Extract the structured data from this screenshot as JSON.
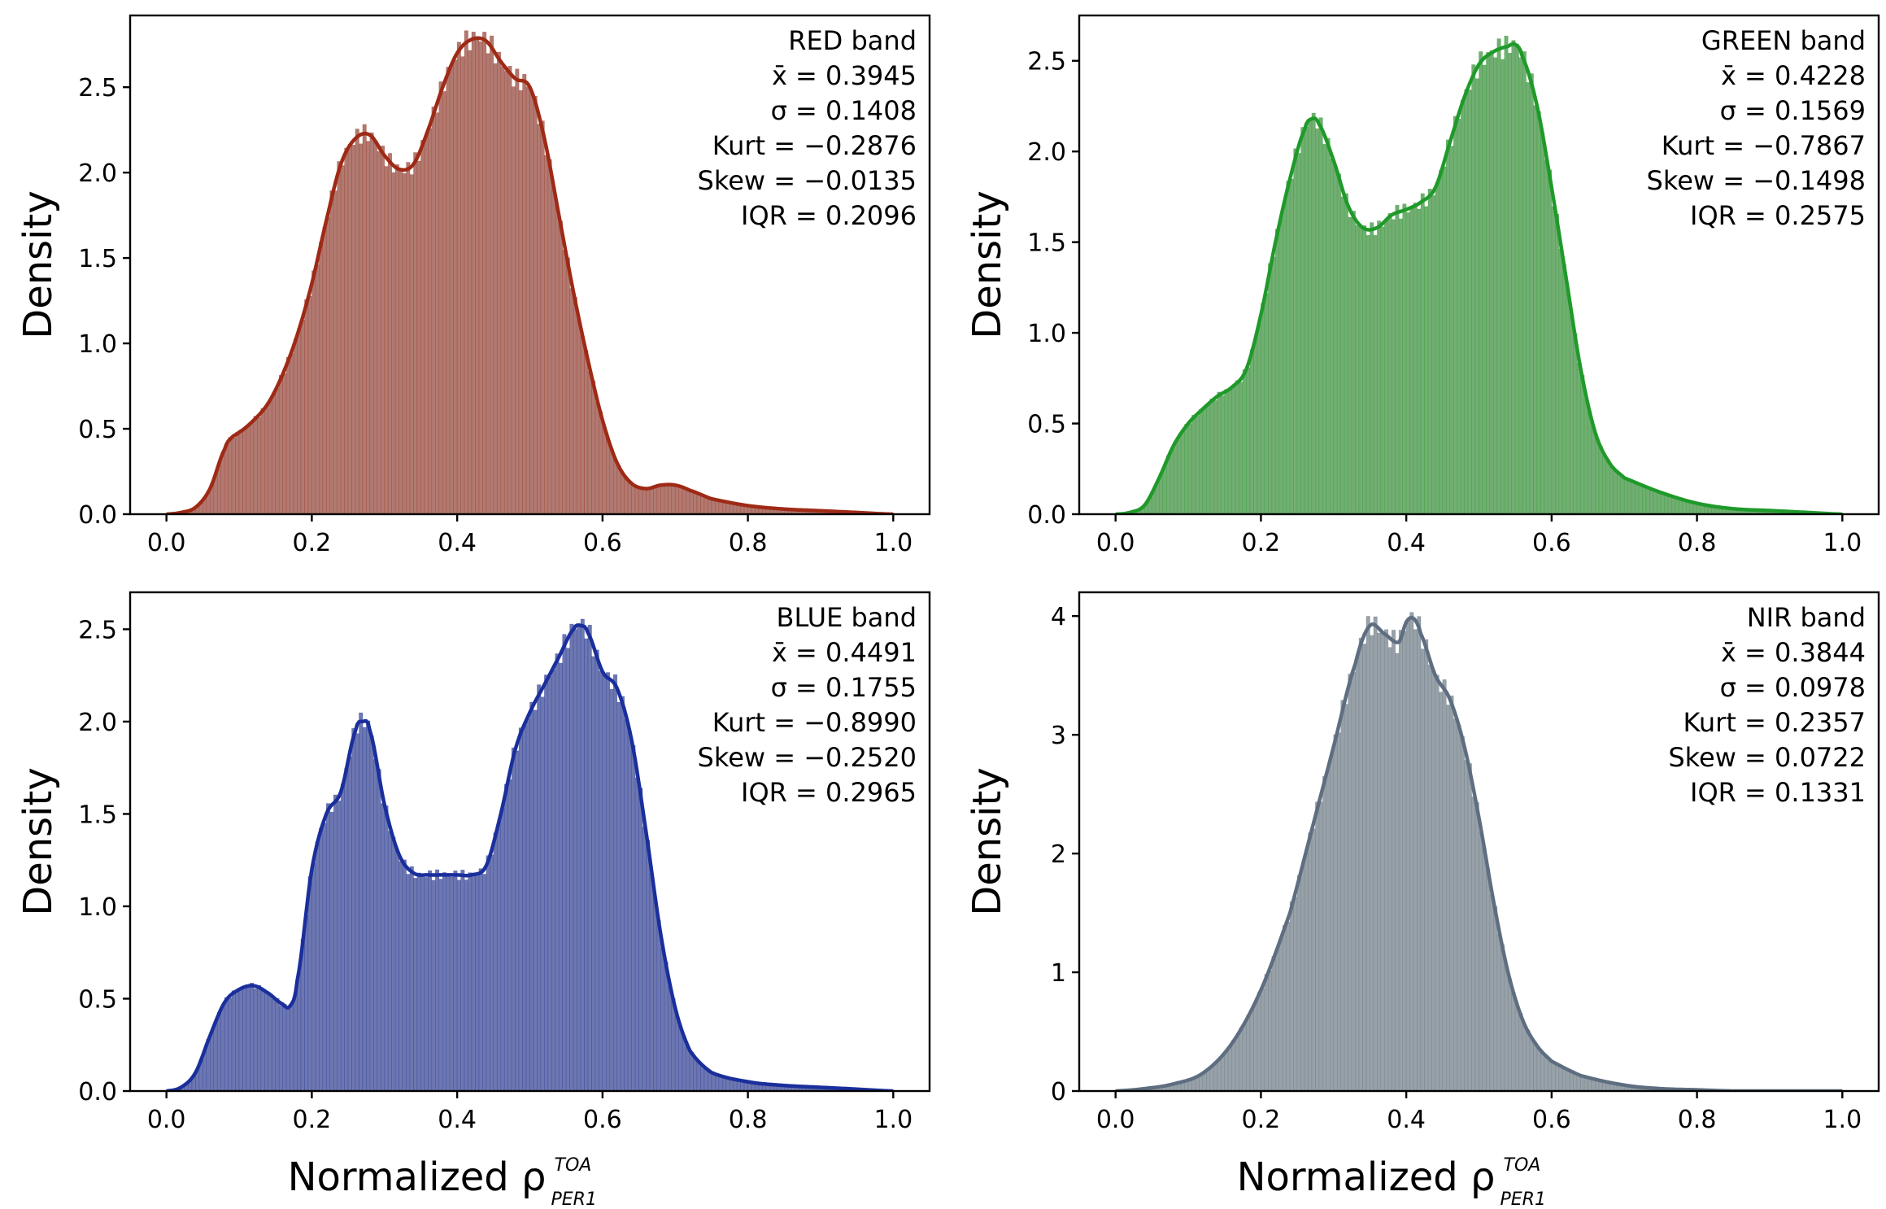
{
  "chart_data": [
    {
      "type": "area",
      "band_label": "RED band",
      "colors": {
        "fill": "#b07a72",
        "line": "#9e2a16"
      },
      "stats": [
        "RED band",
        "x̄ = 0.3945",
        "σ = 0.1408",
        "Kurt = −0.2876",
        "Skew = −0.0135",
        "IQR = 0.2096"
      ],
      "ylabel": "Density",
      "xlabel": "",
      "xlim": [
        -0.05,
        1.05
      ],
      "ylim": [
        0,
        2.92
      ],
      "xticks": [
        0.0,
        0.2,
        0.4,
        0.6,
        0.8,
        1.0
      ],
      "xtick_labels": [
        "0.0",
        "0.2",
        "0.4",
        "0.6",
        "0.8",
        "1.0"
      ],
      "yticks": [
        0.0,
        0.5,
        1.0,
        1.5,
        2.0,
        2.5
      ],
      "ytick_labels": [
        "0.0",
        "0.5",
        "1.0",
        "1.5",
        "2.0",
        "2.5"
      ],
      "curve": {
        "x": [
          0.0,
          0.02,
          0.04,
          0.06,
          0.08,
          0.09,
          0.1,
          0.12,
          0.14,
          0.16,
          0.18,
          0.2,
          0.22,
          0.24,
          0.26,
          0.28,
          0.3,
          0.32,
          0.34,
          0.36,
          0.38,
          0.4,
          0.42,
          0.44,
          0.46,
          0.48,
          0.5,
          0.52,
          0.54,
          0.56,
          0.58,
          0.6,
          0.62,
          0.64,
          0.66,
          0.68,
          0.7,
          0.72,
          0.75,
          0.8,
          0.85,
          0.9,
          0.95,
          1.0
        ],
        "y": [
          0.0,
          0.01,
          0.04,
          0.15,
          0.38,
          0.45,
          0.48,
          0.55,
          0.65,
          0.82,
          1.05,
          1.35,
          1.72,
          2.05,
          2.2,
          2.22,
          2.1,
          2.02,
          2.05,
          2.25,
          2.5,
          2.7,
          2.78,
          2.77,
          2.65,
          2.55,
          2.5,
          2.2,
          1.75,
          1.3,
          0.9,
          0.55,
          0.3,
          0.18,
          0.15,
          0.17,
          0.17,
          0.14,
          0.09,
          0.05,
          0.03,
          0.02,
          0.01,
          0.0
        ]
      }
    },
    {
      "type": "area",
      "band_label": "GREEN band",
      "colors": {
        "fill": "#72ae72",
        "line": "#1f9a2a"
      },
      "stats": [
        "GREEN band",
        "x̄ = 0.4228",
        "σ = 0.1569",
        "Kurt = −0.7867",
        "Skew = −0.1498",
        "IQR = 0.2575"
      ],
      "ylabel": "Density",
      "xlabel": "",
      "xlim": [
        -0.05,
        1.05
      ],
      "ylim": [
        0,
        2.75
      ],
      "xticks": [
        0.0,
        0.2,
        0.4,
        0.6,
        0.8,
        1.0
      ],
      "xtick_labels": [
        "0.0",
        "0.2",
        "0.4",
        "0.6",
        "0.8",
        "1.0"
      ],
      "yticks": [
        0.0,
        0.5,
        1.0,
        1.5,
        2.0,
        2.5
      ],
      "ytick_labels": [
        "0.0",
        "0.5",
        "1.0",
        "1.5",
        "2.0",
        "2.5"
      ],
      "curve": {
        "x": [
          0.0,
          0.02,
          0.04,
          0.06,
          0.08,
          0.1,
          0.12,
          0.14,
          0.16,
          0.18,
          0.2,
          0.22,
          0.24,
          0.26,
          0.27,
          0.28,
          0.3,
          0.32,
          0.34,
          0.36,
          0.38,
          0.4,
          0.42,
          0.44,
          0.46,
          0.48,
          0.5,
          0.52,
          0.54,
          0.55,
          0.56,
          0.58,
          0.6,
          0.62,
          0.64,
          0.66,
          0.68,
          0.7,
          0.75,
          0.8,
          0.85,
          0.9,
          0.95,
          1.0
        ],
        "y": [
          0.0,
          0.01,
          0.05,
          0.2,
          0.38,
          0.5,
          0.58,
          0.65,
          0.7,
          0.8,
          1.1,
          1.5,
          1.85,
          2.12,
          2.18,
          2.15,
          1.95,
          1.7,
          1.58,
          1.58,
          1.65,
          1.68,
          1.72,
          1.8,
          2.05,
          2.3,
          2.48,
          2.55,
          2.58,
          2.59,
          2.52,
          2.25,
          1.8,
          1.3,
          0.8,
          0.45,
          0.28,
          0.2,
          0.12,
          0.06,
          0.03,
          0.02,
          0.01,
          0.0
        ]
      }
    },
    {
      "type": "area",
      "band_label": "BLUE band",
      "colors": {
        "fill": "#6d77b0",
        "line": "#1a2f9c"
      },
      "stats": [
        "BLUE band",
        "x̄ = 0.4491",
        "σ = 0.1755",
        "Kurt = −0.8990",
        "Skew = −0.2520",
        "IQR = 0.2965"
      ],
      "ylabel": "Density",
      "xlabel": "Normalized ρ",
      "xlabel_sup": "TOA",
      "xlabel_sub": "PER1",
      "xlim": [
        -0.05,
        1.05
      ],
      "ylim": [
        0,
        2.7
      ],
      "xticks": [
        0.0,
        0.2,
        0.4,
        0.6,
        0.8,
        1.0
      ],
      "xtick_labels": [
        "0.0",
        "0.2",
        "0.4",
        "0.6",
        "0.8",
        "1.0"
      ],
      "yticks": [
        0.0,
        0.5,
        1.0,
        1.5,
        2.0,
        2.5
      ],
      "ytick_labels": [
        "0.0",
        "0.5",
        "1.0",
        "1.5",
        "2.0",
        "2.5"
      ],
      "curve": {
        "x": [
          0.0,
          0.02,
          0.04,
          0.06,
          0.08,
          0.1,
          0.12,
          0.14,
          0.16,
          0.17,
          0.18,
          0.2,
          0.22,
          0.24,
          0.26,
          0.27,
          0.28,
          0.3,
          0.32,
          0.34,
          0.36,
          0.38,
          0.4,
          0.42,
          0.44,
          0.46,
          0.48,
          0.5,
          0.52,
          0.54,
          0.56,
          0.57,
          0.58,
          0.6,
          0.62,
          0.64,
          0.66,
          0.68,
          0.7,
          0.72,
          0.75,
          0.8,
          0.85,
          0.9,
          0.95,
          1.0
        ],
        "y": [
          0.0,
          0.02,
          0.1,
          0.3,
          0.48,
          0.55,
          0.57,
          0.53,
          0.47,
          0.46,
          0.6,
          1.2,
          1.5,
          1.62,
          1.95,
          2.0,
          1.95,
          1.55,
          1.28,
          1.18,
          1.17,
          1.17,
          1.17,
          1.17,
          1.22,
          1.5,
          1.85,
          2.05,
          2.2,
          2.35,
          2.5,
          2.52,
          2.48,
          2.27,
          2.18,
          1.9,
          1.4,
          0.85,
          0.45,
          0.22,
          0.1,
          0.05,
          0.03,
          0.02,
          0.01,
          0.0
        ]
      }
    },
    {
      "type": "area",
      "band_label": "NIR band",
      "colors": {
        "fill": "#98a1a8",
        "line": "#5e6e80"
      },
      "stats": [
        "NIR band",
        "x̄ = 0.3844",
        "σ = 0.0978",
        "Kurt = 0.2357",
        "Skew = 0.0722",
        "IQR = 0.1331"
      ],
      "ylabel": "Density",
      "xlabel": "Normalized ρ",
      "xlabel_sup": "TOA",
      "xlabel_sub": "PER1",
      "xlim": [
        -0.05,
        1.05
      ],
      "ylim": [
        0,
        4.2
      ],
      "xticks": [
        0.0,
        0.2,
        0.4,
        0.6,
        0.8,
        1.0
      ],
      "xtick_labels": [
        "0.0",
        "0.2",
        "0.4",
        "0.6",
        "0.8",
        "1.0"
      ],
      "yticks": [
        0,
        1,
        2,
        3,
        4
      ],
      "ytick_labels": [
        "0",
        "1",
        "2",
        "3",
        "4"
      ],
      "curve": {
        "x": [
          0.0,
          0.04,
          0.08,
          0.12,
          0.16,
          0.2,
          0.24,
          0.27,
          0.3,
          0.33,
          0.35,
          0.37,
          0.39,
          0.4,
          0.41,
          0.42,
          0.44,
          0.46,
          0.48,
          0.5,
          0.52,
          0.54,
          0.56,
          0.58,
          0.6,
          0.64,
          0.7,
          0.75,
          0.8,
          0.85,
          0.9,
          0.95,
          1.0
        ],
        "y": [
          0.0,
          0.02,
          0.06,
          0.15,
          0.4,
          0.85,
          1.5,
          2.2,
          2.9,
          3.6,
          3.92,
          3.85,
          3.78,
          3.95,
          3.98,
          3.85,
          3.5,
          3.3,
          2.9,
          2.3,
          1.6,
          1.0,
          0.6,
          0.38,
          0.25,
          0.13,
          0.05,
          0.02,
          0.01,
          0.0,
          0.0,
          0.0,
          0.0
        ]
      }
    }
  ]
}
